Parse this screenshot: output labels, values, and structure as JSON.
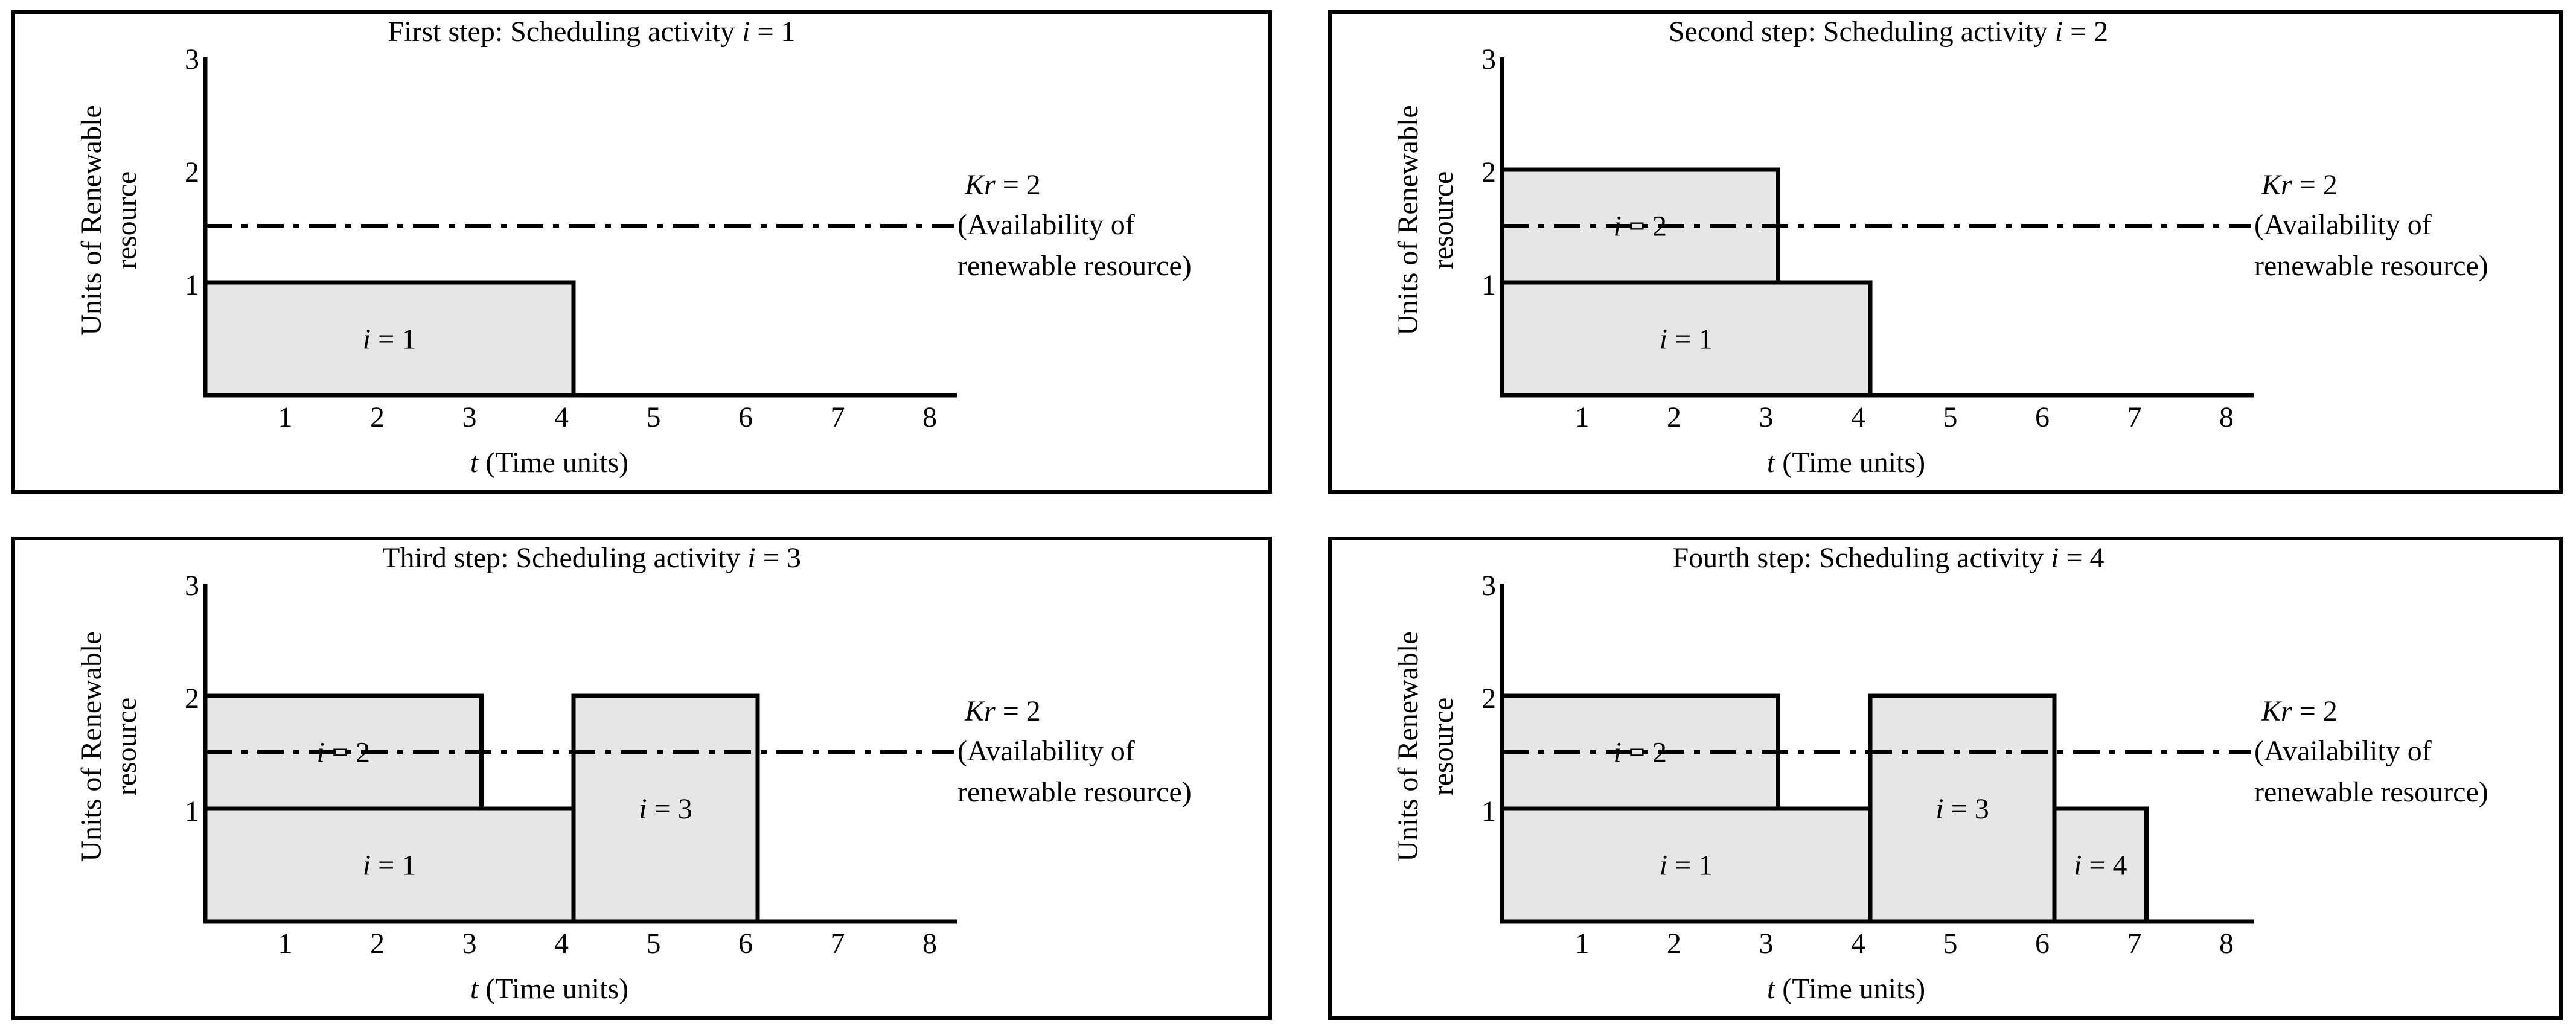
{
  "figure": {
    "ylabel_line1": "Units of Renewable",
    "ylabel_line2": "resource",
    "xlabel_var": "t",
    "xlabel_text": "(Time units)",
    "capacity_line1_var": "Kr",
    "capacity_line1_rest": "= 2",
    "capacity_line2": "(Availability of",
    "capacity_line3": "renewable resource)",
    "activity_var": "i",
    "activity_eq": "= ",
    "title_var": "i"
  },
  "chart_data": [
    {
      "type": "bar",
      "title_text": "First step: Scheduling activity",
      "title_value": "= 1",
      "x_ticks": [
        1,
        2,
        3,
        4,
        5,
        6,
        7,
        8
      ],
      "y_ticks": [
        1,
        2,
        3
      ],
      "xlim": [
        0,
        8
      ],
      "ylim": [
        0,
        3
      ],
      "capacity": 2,
      "activities": [
        {
          "id": 1,
          "start": 0,
          "end": 4,
          "base": 0,
          "units": 1
        }
      ]
    },
    {
      "type": "bar",
      "title_text": "Second step: Scheduling activity",
      "title_value": "= 2",
      "x_ticks": [
        1,
        2,
        3,
        4,
        5,
        6,
        7,
        8
      ],
      "y_ticks": [
        1,
        2,
        3
      ],
      "xlim": [
        0,
        8
      ],
      "ylim": [
        0,
        3
      ],
      "capacity": 2,
      "activities": [
        {
          "id": 1,
          "start": 0,
          "end": 4,
          "base": 0,
          "units": 1
        },
        {
          "id": 2,
          "start": 0,
          "end": 3,
          "base": 1,
          "units": 1
        }
      ]
    },
    {
      "type": "bar",
      "title_text": "Third step: Scheduling activity",
      "title_value": "= 3",
      "x_ticks": [
        1,
        2,
        3,
        4,
        5,
        6,
        7,
        8
      ],
      "y_ticks": [
        1,
        2,
        3
      ],
      "xlim": [
        0,
        8
      ],
      "ylim": [
        0,
        3
      ],
      "capacity": 2,
      "activities": [
        {
          "id": 1,
          "start": 0,
          "end": 4,
          "base": 0,
          "units": 1
        },
        {
          "id": 2,
          "start": 0,
          "end": 3,
          "base": 1,
          "units": 1
        },
        {
          "id": 3,
          "start": 4,
          "end": 6,
          "base": 0,
          "units": 2
        }
      ]
    },
    {
      "type": "bar",
      "title_text": "Fourth step: Scheduling activity",
      "title_value": "= 4",
      "x_ticks": [
        1,
        2,
        3,
        4,
        5,
        6,
        7,
        8
      ],
      "y_ticks": [
        1,
        2,
        3
      ],
      "xlim": [
        0,
        8
      ],
      "ylim": [
        0,
        3
      ],
      "capacity": 2,
      "activities": [
        {
          "id": 1,
          "start": 0,
          "end": 4,
          "base": 0,
          "units": 1
        },
        {
          "id": 2,
          "start": 0,
          "end": 3,
          "base": 1,
          "units": 1
        },
        {
          "id": 3,
          "start": 4,
          "end": 6,
          "base": 0,
          "units": 2
        },
        {
          "id": 4,
          "start": 6,
          "end": 7,
          "base": 0,
          "units": 1
        }
      ]
    }
  ]
}
